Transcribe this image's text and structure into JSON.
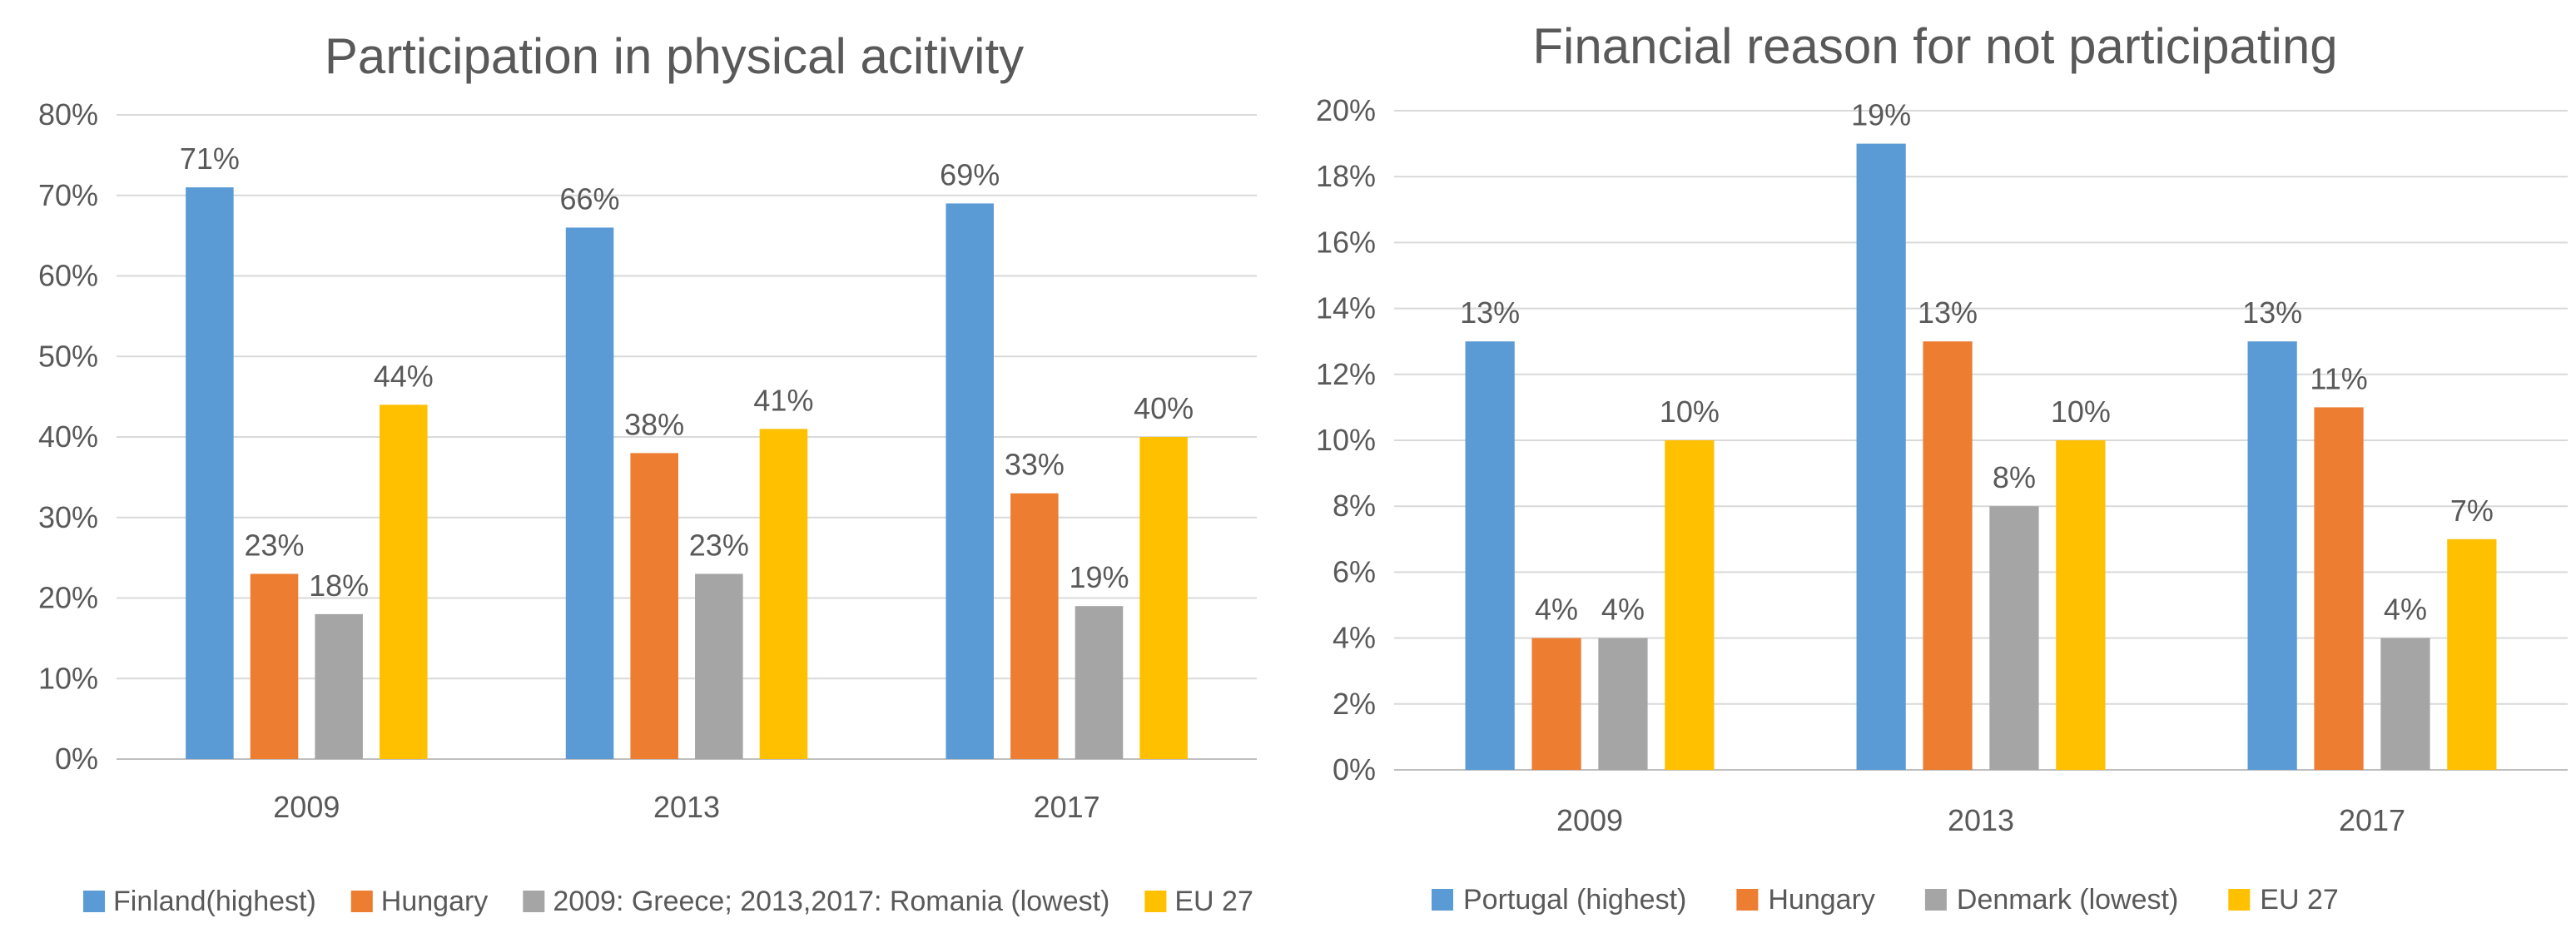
{
  "chart_data": [
    {
      "type": "bar",
      "title": "Participation in physical acitivity",
      "xlabel": "",
      "ylabel": "",
      "categories": [
        "2009",
        "2013",
        "2017"
      ],
      "ylim": [
        0,
        80
      ],
      "ytick_step": 10,
      "ytick_format": "percent",
      "grid": true,
      "legend_position": "bottom",
      "series": [
        {
          "name": "Finland(highest)",
          "color": "#5b9bd5",
          "values": [
            71,
            66,
            69
          ]
        },
        {
          "name": "Hungary",
          "color": "#ed7d31",
          "values": [
            23,
            38,
            33
          ]
        },
        {
          "name": "2009: Greece; 2013,2017: Romania (lowest)",
          "color": "#a5a5a5",
          "values": [
            18,
            23,
            19
          ]
        },
        {
          "name": "EU 27",
          "color": "#ffc000",
          "values": [
            44,
            41,
            40
          ]
        }
      ]
    },
    {
      "type": "bar",
      "title": "Financial reason for not participating",
      "xlabel": "",
      "ylabel": "",
      "categories": [
        "2009",
        "2013",
        "2017"
      ],
      "ylim": [
        0,
        20
      ],
      "ytick_step": 2,
      "ytick_format": "percent",
      "grid": true,
      "legend_position": "bottom",
      "series": [
        {
          "name": "Portugal (highest)",
          "color": "#5b9bd5",
          "values": [
            13,
            19,
            13
          ]
        },
        {
          "name": "Hungary",
          "color": "#ed7d31",
          "values": [
            4,
            13,
            11
          ]
        },
        {
          "name": "Denmark (lowest)",
          "color": "#a5a5a5",
          "values": [
            4,
            8,
            4
          ]
        },
        {
          "name": "EU 27",
          "color": "#ffc000",
          "values": [
            10,
            10,
            7
          ]
        }
      ]
    }
  ]
}
